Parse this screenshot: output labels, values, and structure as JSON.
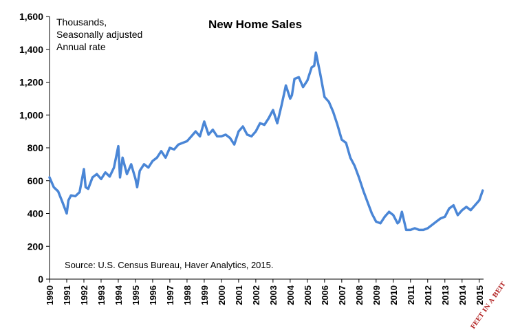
{
  "chart_data": {
    "type": "line",
    "title": "New Home Sales",
    "notes": [
      "Thousands,",
      "Seasonally adjusted",
      "Annual rate"
    ],
    "source": "Source: U.S. Census Bureau, Haver Analytics, 2015.",
    "logo_text": "FEET IN A BEIT",
    "line_color": "#4a86d6",
    "xlim": [
      1990,
      2015.25
    ],
    "ylim": [
      0,
      1600
    ],
    "y_ticks": [
      "0",
      "200",
      "400",
      "600",
      "800",
      "1,000",
      "1,200",
      "1,400",
      "1,600"
    ],
    "x_ticks": [
      "1990",
      "1991",
      "1992",
      "1993",
      "1994",
      "1995",
      "1996",
      "1997",
      "1998",
      "1999",
      "2000",
      "2001",
      "2002",
      "2003",
      "2004",
      "2005",
      "2006",
      "2007",
      "2008",
      "2009",
      "2010",
      "2011",
      "2012",
      "2013",
      "2014",
      "2015"
    ],
    "series": [
      {
        "x": [
          1990.0,
          1990.25,
          1990.5,
          1990.75,
          1991.0,
          1991.1,
          1991.25,
          1991.5,
          1991.75,
          1992.0,
          1992.1,
          1992.25,
          1992.5,
          1992.75,
          1993.0,
          1993.25,
          1993.5,
          1993.75,
          1994.0,
          1994.1,
          1994.25,
          1994.5,
          1994.75,
          1995.0,
          1995.1,
          1995.25,
          1995.5,
          1995.75,
          1996.0,
          1996.25,
          1996.5,
          1996.75,
          1997.0,
          1997.25,
          1997.5,
          1997.75,
          1998.0,
          1998.25,
          1998.5,
          1998.75,
          1999.0,
          1999.25,
          1999.5,
          1999.75,
          2000.0,
          2000.25,
          2000.5,
          2000.75,
          2001.0,
          2001.25,
          2001.5,
          2001.75,
          2002.0,
          2002.25,
          2002.5,
          2002.75,
          2003.0,
          2003.25,
          2003.5,
          2003.75,
          2004.0,
          2004.1,
          2004.25,
          2004.5,
          2004.75,
          2005.0,
          2005.25,
          2005.4,
          2005.5,
          2005.75,
          2006.0,
          2006.25,
          2006.5,
          2006.75,
          2007.0,
          2007.25,
          2007.5,
          2007.75,
          2008.0,
          2008.25,
          2008.5,
          2008.75,
          2009.0,
          2009.25,
          2009.5,
          2009.75,
          2010.0,
          2010.25,
          2010.35,
          2010.5,
          2010.75,
          2011.0,
          2011.25,
          2011.5,
          2011.75,
          2012.0,
          2012.25,
          2012.5,
          2012.75,
          2013.0,
          2013.25,
          2013.5,
          2013.75,
          2014.0,
          2014.25,
          2014.5,
          2014.75,
          2015.0,
          2015.2
        ],
        "y": [
          620,
          560,
          535,
          470,
          400,
          480,
          510,
          505,
          530,
          670,
          560,
          550,
          620,
          640,
          610,
          650,
          625,
          680,
          810,
          620,
          740,
          640,
          700,
          610,
          560,
          660,
          700,
          680,
          720,
          740,
          780,
          740,
          800,
          790,
          820,
          830,
          840,
          870,
          900,
          870,
          960,
          880,
          910,
          870,
          870,
          880,
          860,
          820,
          900,
          930,
          880,
          870,
          900,
          950,
          940,
          980,
          1030,
          950,
          1060,
          1180,
          1100,
          1120,
          1220,
          1230,
          1170,
          1210,
          1290,
          1300,
          1380,
          1250,
          1110,
          1080,
          1020,
          940,
          850,
          830,
          740,
          690,
          620,
          540,
          470,
          400,
          350,
          340,
          380,
          410,
          390,
          340,
          350,
          410,
          300,
          300,
          310,
          300,
          300,
          310,
          330,
          350,
          370,
          380,
          430,
          450,
          390,
          420,
          440,
          420,
          450,
          480,
          540
        ]
      }
    ]
  }
}
